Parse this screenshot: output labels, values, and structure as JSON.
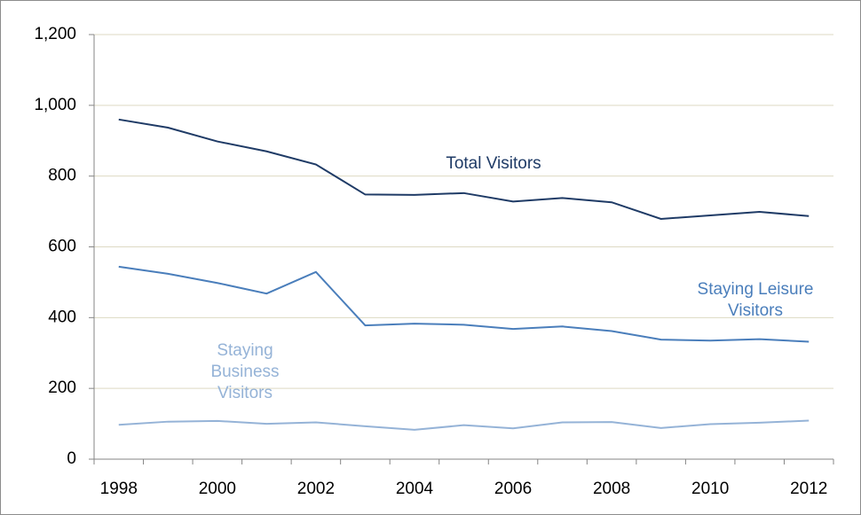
{
  "chart_data": {
    "type": "line",
    "categories": [
      "1998",
      null,
      "2000",
      null,
      "2002",
      null,
      "2004",
      null,
      "2006",
      null,
      "2008",
      null,
      "2010",
      null,
      "2012"
    ],
    "series": [
      {
        "name": "Total Visitors",
        "color": "#1f3b66",
        "values": [
          960,
          937,
          898,
          870,
          833,
          748,
          747,
          752,
          728,
          738,
          726,
          679,
          689,
          699,
          687
        ]
      },
      {
        "name": "Staying Leisure Visitors",
        "color": "#4a7ebb",
        "values": [
          544,
          524,
          498,
          468,
          529,
          378,
          383,
          380,
          368,
          375,
          362,
          338,
          335,
          339,
          332
        ]
      },
      {
        "name": "Staying Business Visitors",
        "color": "#95b3d7",
        "values": [
          97,
          106,
          108,
          100,
          104,
          93,
          83,
          96,
          87,
          104,
          105,
          88,
          99,
          103,
          109
        ]
      }
    ],
    "ylim": [
      0,
      1200
    ],
    "yticks": [
      0,
      200,
      400,
      600,
      800,
      {
        "value": 1000,
        "label": "1,000"
      },
      {
        "value": 1200,
        "label": "1,200"
      }
    ],
    "grid": true
  }
}
